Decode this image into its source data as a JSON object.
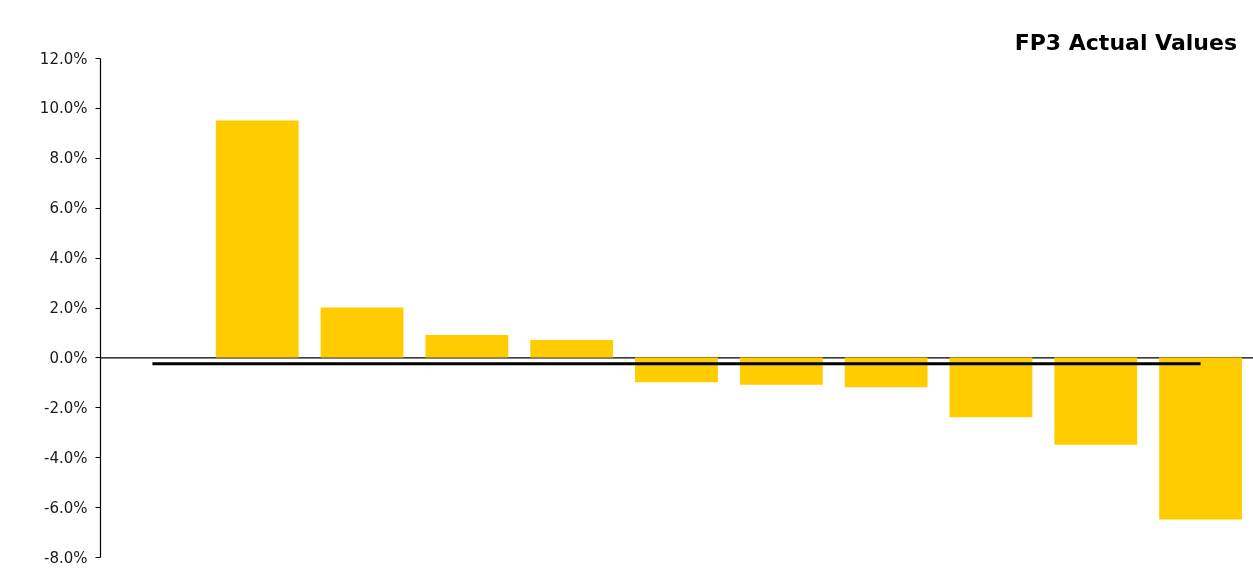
{
  "chart_data": {
    "type": "bar",
    "title": "FP3 Actual Values",
    "categories": [
      null,
      null,
      null,
      null,
      null,
      null,
      null,
      null,
      null,
      null,
      null
    ],
    "series": [
      {
        "color": "#ffcc00",
        "values": [
          null,
          9.5,
          2.0,
          0.9,
          0.7,
          -1.0,
          -1.1,
          -1.2,
          -2.4,
          -3.5,
          -6.5
        ]
      },
      {
        "type": "line",
        "color": "#000000",
        "marker": "none",
        "values": [
          -0.25,
          -0.25,
          -0.25,
          -0.25,
          -0.25,
          -0.25,
          -0.25,
          -0.25,
          -0.25,
          -0.25,
          -0.25
        ]
      }
    ],
    "ylim": [
      -8,
      12
    ],
    "yticks": [
      {
        "value": -8,
        "label": "-8.0%"
      },
      {
        "value": -6,
        "label": "-6.0%"
      },
      {
        "value": -4,
        "label": "-4.0%"
      },
      {
        "value": -2,
        "label": "-2.0%"
      },
      {
        "value": 0,
        "label": "0.0%"
      },
      {
        "value": 2,
        "label": "2.0%"
      },
      {
        "value": 4,
        "label": "4.0%"
      },
      {
        "value": 6,
        "label": "6.0%"
      },
      {
        "value": 8,
        "label": "8.0%"
      },
      {
        "value": 10,
        "label": "10.0%"
      },
      {
        "value": 12,
        "label": "12.0%"
      }
    ],
    "grid": false,
    "tick_labels": "y"
  }
}
